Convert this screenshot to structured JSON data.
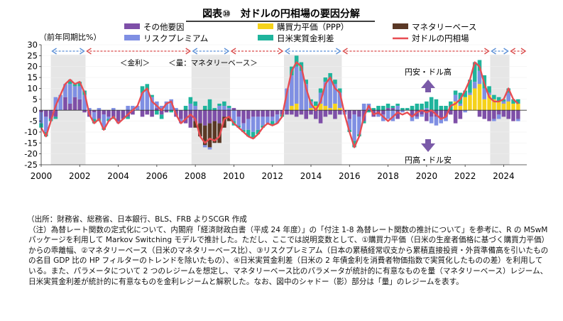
{
  "title": "図表⑩　対ドルの円相場の要因分解",
  "chart_data": {
    "type": "bar",
    "subtype": "stacked bar with line overlay",
    "ylabel": "（前年同期比%）",
    "ylim": [
      -25,
      30
    ],
    "yticks": [
      30,
      25,
      20,
      15,
      10,
      5,
      0,
      -5,
      -10,
      -15,
      -20,
      -25
    ],
    "xlim": [
      2000,
      2025.2
    ],
    "xticks": [
      2000,
      2002,
      2004,
      2006,
      2008,
      2010,
      2012,
      2014,
      2016,
      2018,
      2020,
      2022,
      2024
    ],
    "legend": [
      {
        "name": "その他要因",
        "color": "#7e4fa8"
      },
      {
        "name": "購買力平価（PPP）",
        "color": "#f5d21a"
      },
      {
        "name": "マネタリーベース",
        "color": "#5a3825"
      },
      {
        "name": "リスクプレミアム",
        "color": "#7f8fe3"
      },
      {
        "name": "日米実質金利差",
        "color": "#1fb49c"
      },
      {
        "name": "対ドルの円相場",
        "color": "#e84c52"
      }
    ],
    "regimes": [
      {
        "label": "量",
        "start": 2000.5,
        "end": 2002.3,
        "shaded": true
      },
      {
        "label": "金利",
        "start": 2002.3,
        "end": 2007.8,
        "shaded": false
      },
      {
        "label": "量",
        "start": 2007.8,
        "end": 2009.8,
        "shaded": true
      },
      {
        "label": "金利",
        "start": 2009.8,
        "end": 2012.6,
        "shaded": false
      },
      {
        "label": "量",
        "start": 2012.6,
        "end": 2015.6,
        "shaded": true
      },
      {
        "label": "金利",
        "start": 2015.6,
        "end": 2023.3,
        "shaded": false
      },
      {
        "label": "量",
        "start": 2023.3,
        "end": 2024.3,
        "shaded": true
      },
      {
        "label": "金利",
        "start": 2024.3,
        "end": 2025.2,
        "shaded": false
      }
    ],
    "regime_labels": [
      "＜金利＞",
      "＜量：マネタリーベース＞"
    ],
    "annotations": [
      "円安・ドル高",
      "円高・ドル安"
    ],
    "series": [
      {
        "name": "対ドルの円相場",
        "x": [
          2000.0,
          2000.25,
          2000.5,
          2000.75,
          2001.0,
          2001.25,
          2001.5,
          2001.75,
          2002.0,
          2002.25,
          2002.5,
          2002.75,
          2003.0,
          2003.25,
          2003.5,
          2003.75,
          2004.0,
          2004.25,
          2004.5,
          2004.75,
          2005.0,
          2005.25,
          2005.5,
          2005.75,
          2006.0,
          2006.25,
          2006.5,
          2006.75,
          2007.0,
          2007.25,
          2007.5,
          2007.75,
          2008.0,
          2008.25,
          2008.5,
          2008.75,
          2009.0,
          2009.25,
          2009.5,
          2009.75,
          2010.0,
          2010.25,
          2010.5,
          2010.75,
          2011.0,
          2011.25,
          2011.5,
          2011.75,
          2012.0,
          2012.25,
          2012.5,
          2012.75,
          2013.0,
          2013.25,
          2013.5,
          2013.75,
          2014.0,
          2014.25,
          2014.5,
          2014.75,
          2015.0,
          2015.25,
          2015.5,
          2015.75,
          2016.0,
          2016.25,
          2016.5,
          2016.75,
          2017.0,
          2017.25,
          2017.5,
          2017.75,
          2018.0,
          2018.25,
          2018.5,
          2018.75,
          2019.0,
          2019.25,
          2019.5,
          2019.75,
          2020.0,
          2020.25,
          2020.5,
          2020.75,
          2021.0,
          2021.25,
          2021.5,
          2021.75,
          2022.0,
          2022.25,
          2022.5,
          2022.75,
          2023.0,
          2023.25,
          2023.5,
          2023.75,
          2024.0,
          2024.25,
          2024.5,
          2024.75
        ],
        "values": [
          -8,
          -12,
          -5,
          2,
          7,
          12,
          14,
          12,
          13,
          8,
          -2,
          -6,
          -4,
          -9,
          -5,
          -3,
          -6,
          -4,
          -2,
          0,
          2,
          8,
          10,
          4,
          2,
          0,
          3,
          4,
          -2,
          -6,
          -4,
          -2,
          -4,
          -12,
          -15,
          -13,
          -14,
          -12,
          -4,
          -3,
          -6,
          -8,
          -10,
          -12,
          -13,
          -11,
          -8,
          -6,
          -7,
          -6,
          -3,
          8,
          18,
          22,
          20,
          10,
          3,
          0,
          4,
          12,
          15,
          10,
          8,
          -2,
          -10,
          -17,
          -12,
          -3,
          2,
          -2,
          -1,
          -3,
          -5,
          -3,
          -1,
          -2,
          -1,
          -3,
          -1,
          0,
          -1,
          0,
          -2,
          -4,
          -3,
          2,
          3,
          5,
          9,
          14,
          22,
          20,
          12,
          6,
          4,
          4,
          5,
          10,
          5,
          3
        ]
      },
      {
        "name": "その他要因",
        "values": [
          -1,
          -3,
          -4,
          -3,
          0,
          6,
          3,
          6,
          5,
          -1,
          -3,
          -1,
          -4,
          -2,
          -3,
          -3,
          -5,
          -4,
          -3,
          -2,
          0,
          -3,
          -2,
          -3,
          1,
          -2,
          -1,
          0,
          -3,
          -4,
          -6,
          -8,
          -5,
          -6,
          -7,
          -6,
          -5,
          -6,
          -3,
          -3,
          1,
          -3,
          -6,
          -4,
          -3,
          -3,
          -3,
          -3,
          -3,
          -2,
          -2,
          -2,
          -2,
          -3,
          -2,
          -4,
          -2,
          -4,
          -6,
          -3,
          -2,
          -4,
          -2,
          -1,
          -4,
          -2,
          -3,
          -5,
          0,
          -3,
          -2,
          -2,
          1,
          1,
          -4,
          0,
          0,
          -3,
          -3,
          -2,
          -5,
          -3,
          -3,
          -4,
          -3,
          -2,
          -6,
          -4,
          0,
          0,
          0,
          -3,
          -4,
          -5,
          -4,
          -2,
          -3,
          -4,
          -5,
          -4
        ]
      },
      {
        "name": "購買力平価（PPP）",
        "values": [
          0,
          0,
          0,
          0,
          0,
          0,
          0,
          0,
          0,
          0,
          0,
          0,
          0,
          0,
          0,
          0,
          0,
          0,
          0,
          0,
          0,
          0,
          0,
          0,
          0,
          0,
          0,
          0,
          0,
          0,
          0,
          0,
          0,
          0,
          0,
          0,
          0,
          0,
          0,
          0,
          0,
          0,
          0,
          0,
          0,
          0,
          0,
          0,
          0,
          0,
          0,
          0,
          2,
          3,
          0,
          0,
          1,
          2,
          3,
          2,
          1,
          3,
          1,
          0,
          0,
          0,
          0,
          0,
          0,
          0,
          0,
          0,
          0,
          0,
          0,
          0,
          0,
          0,
          0,
          0,
          0,
          0,
          0,
          0,
          0,
          0,
          4,
          2,
          6,
          7,
          10,
          12,
          5,
          7,
          5,
          4,
          3,
          4,
          3,
          3
        ]
      },
      {
        "name": "マネタリーベース",
        "values": [
          0,
          0,
          0,
          0,
          0,
          0,
          0,
          0,
          0,
          0,
          0,
          0,
          0,
          0,
          0,
          0,
          0,
          0,
          0,
          0,
          0,
          0,
          0,
          0,
          0,
          0,
          0,
          0,
          0,
          0,
          0,
          0,
          -3,
          -6,
          -9,
          -11,
          -10,
          -9,
          -5,
          -2,
          0,
          0,
          0,
          0,
          0,
          0,
          0,
          0,
          0,
          0,
          0,
          0,
          0,
          0,
          0,
          0,
          0,
          0,
          0,
          0,
          0,
          0,
          0,
          0,
          0,
          0,
          0,
          0,
          0,
          0,
          0,
          0,
          0,
          0,
          0,
          0,
          0,
          0,
          0,
          0,
          0,
          0,
          0,
          0,
          0,
          0,
          0,
          0,
          0,
          0,
          0,
          0,
          0,
          0,
          0,
          0,
          0,
          0,
          0,
          0
        ]
      },
      {
        "name": "リスクプレミアム",
        "values": [
          -5,
          -7,
          0,
          6,
          7,
          6,
          9,
          5,
          6,
          7,
          1,
          -3,
          1,
          -6,
          -1,
          1,
          -1,
          0,
          2,
          2,
          2,
          8,
          9,
          6,
          3,
          2,
          4,
          5,
          1,
          -2,
          0,
          3,
          2,
          0,
          -1,
          -1,
          0,
          2,
          2,
          1,
          -5,
          -4,
          -3,
          -5,
          -7,
          -6,
          -4,
          -3,
          -2,
          -4,
          0,
          10,
          14,
          17,
          18,
          12,
          3,
          0,
          5,
          11,
          13,
          9,
          7,
          -1,
          -5,
          -12,
          -8,
          3,
          3,
          0,
          -1,
          -3,
          -4,
          -5,
          2,
          -1,
          0,
          -2,
          -1,
          -1,
          1,
          -3,
          -4,
          -2,
          -2,
          0,
          3,
          1,
          -1,
          1,
          3,
          6,
          5,
          1,
          -1,
          -2,
          1,
          4,
          0,
          -1
        ]
      },
      {
        "name": "日米実質金利差",
        "values": [
          -2,
          -2,
          -1,
          -1,
          0,
          0,
          2,
          1,
          2,
          2,
          0,
          -2,
          -1,
          -1,
          -1,
          -1,
          0,
          0,
          -1,
          0,
          0,
          3,
          3,
          1,
          -2,
          -2,
          0,
          -1,
          0,
          0,
          2,
          3,
          2,
          0,
          2,
          5,
          1,
          1,
          2,
          1,
          -2,
          -1,
          -1,
          -3,
          -3,
          -2,
          -1,
          0,
          -2,
          0,
          -1,
          0,
          4,
          5,
          4,
          2,
          1,
          2,
          2,
          2,
          3,
          2,
          2,
          0,
          -1,
          -3,
          -1,
          -1,
          -1,
          1,
          2,
          2,
          2,
          1,
          1,
          1,
          1,
          2,
          3,
          3,
          3,
          6,
          5,
          2,
          2,
          4,
          2,
          5,
          3,
          6,
          9,
          5,
          6,
          3,
          2,
          2,
          1,
          2,
          2,
          2
        ]
      }
    ]
  },
  "notes": {
    "source": "（出所：財務省、総務省、日本銀行、BLS、FRB よりSCGR 作成",
    "body": "（注）為替レート関数の定式化について、内閣府「経済財政白書（平成 24 年度）」の「付注 1-8 為替レート関数の推計について」を参考に、R の MSwM パッケージを利用して Markov Switching モデルで推計した。ただし、ここでは説明変数として、①購買力平価（日米の生産者価格に基づく購買力平価）からの乖離幅、②マネタリーベース（日米のマネタリーベース比）、③リスクプレミアム（日本の累積経常収支から累積直接投資・外貨準備高を引いたものの名目 GDP 比の HP フィルターのトレンドを除いたもの）、④日米実質金利差（日米の 2 年債金利を消費者物価指数で実質化したものの差）を利用している。また、パラメータについて 2 つのレジームを想定し、マネタリーベース比のパラメータが統計的に有意なものを量（マネタリーベース）レジーム、日米実質金利差が統計的に有意なものを金利レジームと解釈した。なお、図中のシャドー（影）部分は「量」のレジームを表す。"
  }
}
